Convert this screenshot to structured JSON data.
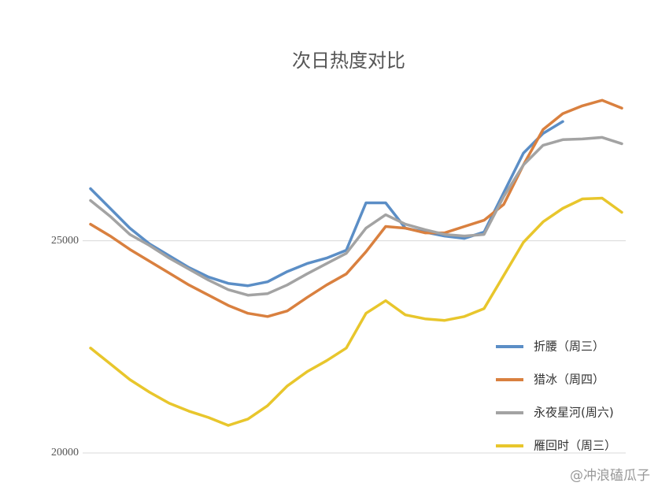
{
  "chart_data": {
    "type": "line",
    "title": "次日热度对比",
    "categories": [
      null,
      null,
      null,
      null,
      null,
      null,
      null,
      null,
      null,
      null,
      null,
      null,
      null,
      null,
      null,
      null,
      null,
      null,
      null,
      null,
      null,
      null,
      null,
      null,
      null,
      null,
      null,
      null
    ],
    "series": [
      {
        "name": "折腰（周三）",
        "color": "#5b8ec6",
        "values": [
          26227,
          25762,
          25297,
          24926,
          24647,
          24368,
          24145,
          23996,
          23940,
          24033,
          24275,
          24461,
          24591,
          24777,
          25892,
          25892,
          25297,
          25204,
          25112,
          25056,
          25204,
          26134,
          27063,
          27528,
          27807,
          null,
          null,
          null
        ]
      },
      {
        "name": "猎冰（周四）",
        "color": "#d9803f",
        "values": [
          25390,
          25112,
          24796,
          24517,
          24238,
          23959,
          23717,
          23476,
          23290,
          23215,
          23346,
          23662,
          23959,
          24219,
          24740,
          25335,
          25297,
          25186,
          25186,
          25335,
          25483,
          25855,
          26785,
          27621,
          27993,
          28179,
          28309,
          28123
        ]
      },
      {
        "name": "永夜星河(周六)",
        "color": "#a3a3a3",
        "values": [
          25948,
          25576,
          25149,
          24888,
          24591,
          24331,
          24071,
          23847,
          23717,
          23755,
          23959,
          24219,
          24461,
          24703,
          25297,
          25613,
          25390,
          25260,
          25149,
          25112,
          25149,
          26041,
          26785,
          27249,
          27380,
          27398,
          27435,
          27287
        ]
      },
      {
        "name": "雁回时（周三）",
        "color": "#e8c62c",
        "values": [
          22472,
          22100,
          21728,
          21431,
          21171,
          20985,
          20836,
          20650,
          20799,
          21115,
          21580,
          21914,
          22175,
          22472,
          23290,
          23587,
          23253,
          23160,
          23123,
          23215,
          23401,
          24182,
          24963,
          25446,
          25762,
          25985,
          26004,
          25669
        ]
      }
    ],
    "ylim": [
      20000,
      28500
    ],
    "yticks": [
      20000,
      25000
    ],
    "grid": true,
    "legend": "lower right",
    "watermark": "@冲浪磕瓜子"
  }
}
